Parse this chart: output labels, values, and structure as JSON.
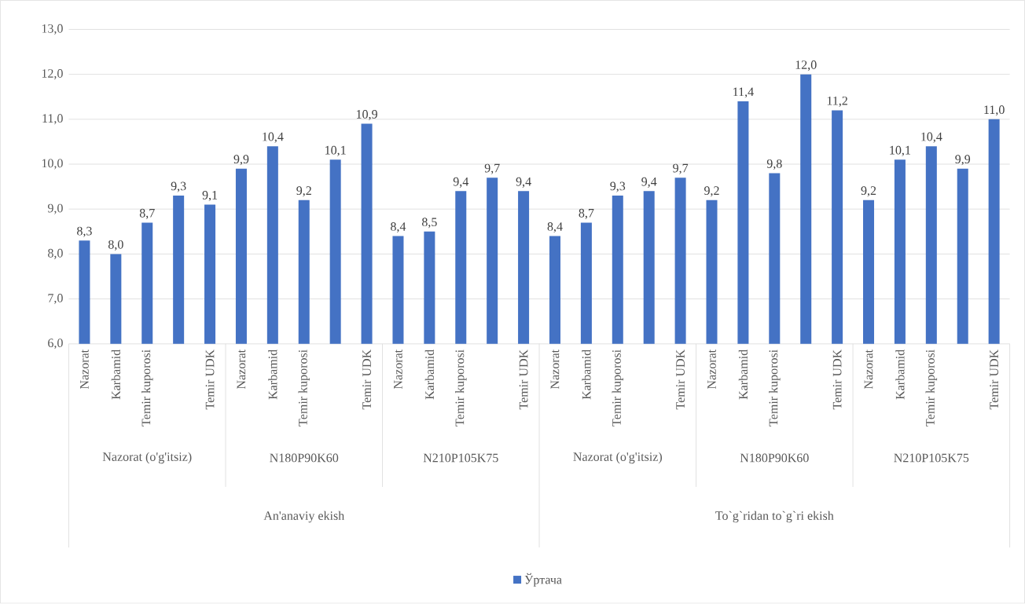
{
  "chart_data": {
    "type": "bar",
    "categories": [
      "Nazorat",
      "Karbamid",
      "Temir kuporosi",
      null,
      "Temir UDK",
      "Nazorat",
      "Karbamid",
      "Temir kuporosi",
      null,
      "Temir UDK",
      "Nazorat",
      "Karbamid",
      "Temir kuporosi",
      null,
      "Temir UDK",
      "Nazorat",
      "Karbamid",
      "Temir kuporosi",
      null,
      "Temir UDK",
      "Nazorat",
      "Karbamid",
      "Temir kuporosi",
      null,
      "Temir UDK",
      "Nazorat",
      "Karbamid",
      "Temir kuporosi",
      null,
      "Temir UDK"
    ],
    "series": [
      {
        "name": "Ўртача",
        "color": "#4472c4",
        "values": [
          8.3,
          8.0,
          8.7,
          9.3,
          9.1,
          9.9,
          10.4,
          9.2,
          10.1,
          10.9,
          8.4,
          8.5,
          9.4,
          9.7,
          9.4,
          8.4,
          8.7,
          9.3,
          9.4,
          9.7,
          9.2,
          11.4,
          9.8,
          12.0,
          11.2,
          9.2,
          10.1,
          10.4,
          9.9,
          11.0
        ],
        "value_labels": [
          "8,3",
          "8,0",
          "8,7",
          "9,3",
          "9,1",
          "9,9",
          "10,4",
          "9,2",
          "10,1",
          "10,9",
          "8,4",
          "8,5",
          "9,4",
          "9,7",
          "9,4",
          "8,4",
          "8,7",
          "9,3",
          "9,4",
          "9,7",
          "9,2",
          "11,4",
          "9,8",
          "12,0",
          "11,2",
          "9,2",
          "10,1",
          "10,4",
          "9,9",
          "11,0"
        ]
      }
    ],
    "ylim": [
      6,
      13
    ],
    "yticks": [
      {
        "value": 6,
        "label": "6,0"
      },
      {
        "value": 7,
        "label": "7,0"
      },
      {
        "value": 8,
        "label": "8,0"
      },
      {
        "value": 9,
        "label": "9,0"
      },
      {
        "value": 10,
        "label": "10,0"
      },
      {
        "value": 11,
        "label": "11,0"
      },
      {
        "value": 12,
        "label": "12,0"
      },
      {
        "value": 13,
        "label": "13,0"
      }
    ],
    "annotations": [
      "Nazorat (o'g'itsiz)",
      "N180P90K60",
      "N210P105K75",
      "Nazorat (o'g'itsiz)",
      "N180P90K60",
      "N210P105K75",
      "An'anaviy ekish",
      "To`g`ridan to`g`ri ekish"
    ],
    "grid": "y",
    "legend": "bottom"
  }
}
